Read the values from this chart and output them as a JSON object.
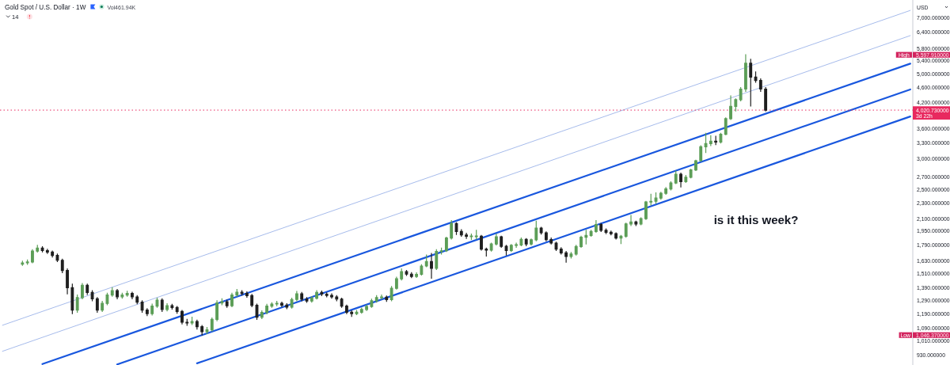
{
  "chart_data": {
    "type": "candlestick",
    "title": "Gold Spot / U.S. Dollar · 1W",
    "subtitle": "Vol461.94K",
    "ylabel": "USD",
    "log": true,
    "tick_labels": "y",
    "ylim": [
      875,
      7770
    ],
    "yticks": [
      {
        "value": 930,
        "label": "930.000000"
      },
      {
        "value": 1010,
        "label": "1,010.000000"
      },
      {
        "value": 1090,
        "label": "1,090.000000"
      },
      {
        "value": 1190,
        "label": "1,190.000000"
      },
      {
        "value": 1290,
        "label": "1,290.000000"
      },
      {
        "value": 1390,
        "label": "1,390.000000"
      },
      {
        "value": 1510,
        "label": "1,510.000000"
      },
      {
        "value": 1630,
        "label": "1,630.000000"
      },
      {
        "value": 1790,
        "label": "1,790.000000"
      },
      {
        "value": 1950,
        "label": "1,950.000000"
      },
      {
        "value": 2100,
        "label": "2,100.000000"
      },
      {
        "value": 2300,
        "label": "2,300.000000"
      },
      {
        "value": 2500,
        "label": "2,500.000000"
      },
      {
        "value": 2700,
        "label": "2,700.000000"
      },
      {
        "value": 3000,
        "label": "3,000.000000"
      },
      {
        "value": 3300,
        "label": "3,300.000000"
      },
      {
        "value": 3600,
        "label": "3,600.000000"
      },
      {
        "value": 4200,
        "label": "4,200.000000"
      },
      {
        "value": 4600,
        "label": "4,600.000000"
      },
      {
        "value": 5000,
        "label": "5,000.000000"
      },
      {
        "value": 5400,
        "label": "5,400.000000"
      },
      {
        "value": 5800,
        "label": "5,800.000000"
      },
      {
        "value": 6400,
        "label": "6,400.000000"
      },
      {
        "value": 7000,
        "label": "7,000.000000"
      }
    ],
    "categories": [
      null,
      null,
      null,
      null,
      null,
      null,
      null,
      null,
      null,
      null,
      null,
      null,
      null,
      null,
      null,
      null,
      null,
      null,
      null,
      null,
      null,
      null,
      null,
      null,
      null,
      null,
      null,
      null,
      null,
      null,
      null,
      null,
      null,
      null,
      null,
      null,
      null,
      null,
      null,
      null,
      null,
      null,
      null,
      null,
      null,
      null,
      null,
      null,
      null,
      null,
      null,
      null,
      null,
      null,
      null,
      null,
      null,
      null,
      null,
      null,
      null,
      null,
      null,
      null,
      null,
      null,
      null,
      null,
      null,
      null,
      null,
      null,
      null,
      null,
      null,
      null,
      null,
      null,
      null,
      null,
      null,
      null,
      null,
      null,
      null,
      null,
      null,
      null,
      null,
      null,
      null,
      null,
      null,
      null,
      null,
      null,
      null,
      null,
      null,
      null,
      null,
      null,
      null,
      null,
      null,
      null,
      null,
      null,
      null,
      null,
      null,
      null,
      null,
      null,
      null,
      null,
      null,
      null,
      null,
      null,
      null,
      null,
      null,
      null,
      null,
      null,
      null,
      null,
      null,
      null,
      null,
      null,
      null,
      null,
      null,
      null,
      null,
      null,
      null,
      null,
      null,
      null,
      null,
      null,
      null,
      null,
      null,
      null,
      null,
      null,
      null,
      null,
      null,
      null,
      null,
      null,
      null,
      null,
      null,
      null,
      null,
      null,
      null,
      null,
      null,
      null,
      null,
      null,
      null,
      null,
      null,
      null,
      null,
      null,
      null,
      null,
      null,
      null,
      null,
      null,
      null,
      null,
      null
    ],
    "ohlc": [
      null,
      null,
      null,
      null,
      [
        1600,
        1628,
        1588,
        1612
      ],
      [
        1612,
        1640,
        1598,
        1620
      ],
      [
        1620,
        1745,
        1612,
        1730
      ],
      [
        1730,
        1790,
        1720,
        1760
      ],
      [
        1760,
        1775,
        1722,
        1735
      ],
      [
        1735,
        1748,
        1705,
        1720
      ],
      [
        1720,
        1730,
        1670,
        1685
      ],
      [
        1685,
        1700,
        1625,
        1637
      ],
      [
        1637,
        1648,
        1520,
        1540
      ],
      [
        1540,
        1555,
        1340,
        1390
      ],
      [
        1390,
        1420,
        1190,
        1215
      ],
      [
        1215,
        1330,
        1200,
        1310
      ],
      [
        1310,
        1425,
        1300,
        1410
      ],
      [
        1410,
        1420,
        1335,
        1350
      ],
      [
        1350,
        1365,
        1285,
        1300
      ],
      [
        1300,
        1310,
        1200,
        1215
      ],
      [
        1215,
        1280,
        1205,
        1265
      ],
      [
        1265,
        1345,
        1255,
        1330
      ],
      [
        1330,
        1390,
        1320,
        1365
      ],
      [
        1365,
        1375,
        1300,
        1316
      ],
      [
        1316,
        1345,
        1305,
        1330
      ],
      [
        1330,
        1360,
        1320,
        1342
      ],
      [
        1342,
        1352,
        1300,
        1315
      ],
      [
        1315,
        1325,
        1262,
        1275
      ],
      [
        1275,
        1285,
        1200,
        1215
      ],
      [
        1215,
        1225,
        1175,
        1190
      ],
      [
        1190,
        1260,
        1180,
        1245
      ],
      [
        1245,
        1305,
        1235,
        1290
      ],
      [
        1290,
        1300,
        1205,
        1220
      ],
      [
        1220,
        1262,
        1210,
        1248
      ],
      [
        1248,
        1258,
        1222,
        1234
      ],
      [
        1234,
        1242,
        1192,
        1205
      ],
      [
        1205,
        1212,
        1118,
        1130
      ],
      [
        1130,
        1150,
        1110,
        1125
      ],
      [
        1125,
        1165,
        1115,
        1135
      ],
      [
        1135,
        1145,
        1085,
        1100
      ],
      [
        1100,
        1108,
        1046.37,
        1068
      ],
      [
        1068,
        1095,
        1055,
        1080
      ],
      [
        1080,
        1160,
        1072,
        1150
      ],
      [
        1150,
        1285,
        1140,
        1268
      ],
      [
        1268,
        1300,
        1255,
        1278
      ],
      [
        1278,
        1290,
        1235,
        1248
      ],
      [
        1248,
        1345,
        1240,
        1330
      ],
      [
        1330,
        1375,
        1320,
        1352
      ],
      [
        1352,
        1365,
        1330,
        1342
      ],
      [
        1342,
        1355,
        1312,
        1325
      ],
      [
        1325,
        1335,
        1240,
        1250
      ],
      [
        1250,
        1260,
        1150,
        1165
      ],
      [
        1165,
        1210,
        1155,
        1198
      ],
      [
        1198,
        1258,
        1188,
        1245
      ],
      [
        1245,
        1270,
        1235,
        1260
      ],
      [
        1260,
        1280,
        1248,
        1265
      ],
      [
        1265,
        1275,
        1240,
        1252
      ],
      [
        1252,
        1262,
        1225,
        1237
      ],
      [
        1237,
        1305,
        1230,
        1295
      ],
      [
        1295,
        1358,
        1285,
        1340
      ],
      [
        1340,
        1350,
        1285,
        1297
      ],
      [
        1297,
        1310,
        1272,
        1284
      ],
      [
        1284,
        1318,
        1275,
        1305
      ],
      [
        1305,
        1365,
        1298,
        1350
      ],
      [
        1350,
        1362,
        1325,
        1337
      ],
      [
        1337,
        1348,
        1315,
        1327
      ],
      [
        1327,
        1340,
        1305,
        1315
      ],
      [
        1315,
        1325,
        1285,
        1298
      ],
      [
        1298,
        1305,
        1235,
        1245
      ],
      [
        1245,
        1252,
        1190,
        1200
      ],
      [
        1200,
        1210,
        1170,
        1190
      ],
      [
        1190,
        1212,
        1182,
        1200
      ],
      [
        1200,
        1230,
        1192,
        1220
      ],
      [
        1220,
        1252,
        1212,
        1242
      ],
      [
        1242,
        1298,
        1235,
        1285
      ],
      [
        1285,
        1325,
        1275,
        1310
      ],
      [
        1310,
        1330,
        1298,
        1313
      ],
      [
        1313,
        1322,
        1280,
        1294
      ],
      [
        1294,
        1400,
        1285,
        1385
      ],
      [
        1385,
        1480,
        1378,
        1465
      ],
      [
        1465,
        1555,
        1455,
        1530
      ],
      [
        1530,
        1540,
        1495,
        1507
      ],
      [
        1507,
        1520,
        1475,
        1487
      ],
      [
        1487,
        1518,
        1478,
        1505
      ],
      [
        1505,
        1595,
        1498,
        1582
      ],
      [
        1582,
        1690,
        1575,
        1625
      ],
      [
        1625,
        1705,
        1470,
        1560
      ],
      [
        1560,
        1745,
        1550,
        1725
      ],
      [
        1725,
        1760,
        1700,
        1733
      ],
      [
        1733,
        1880,
        1725,
        1870
      ],
      [
        1870,
        2075,
        1860,
        2040
      ],
      [
        2040,
        2050,
        1910,
        1945
      ],
      [
        1945,
        1965,
        1890,
        1905
      ],
      [
        1905,
        1925,
        1865,
        1890
      ],
      [
        1890,
        1915,
        1855,
        1890
      ],
      [
        1890,
        1960,
        1860,
        1890
      ],
      [
        1890,
        1900,
        1740,
        1750
      ],
      [
        1750,
        1760,
        1680,
        1740
      ],
      [
        1740,
        1815,
        1730,
        1805
      ],
      [
        1805,
        1915,
        1795,
        1885
      ],
      [
        1885,
        1890,
        1770,
        1780
      ],
      [
        1780,
        1790,
        1690,
        1735
      ],
      [
        1735,
        1800,
        1725,
        1790
      ],
      [
        1790,
        1815,
        1770,
        1795
      ],
      [
        1795,
        1870,
        1785,
        1855
      ],
      [
        1855,
        1865,
        1785,
        1805
      ],
      [
        1805,
        1860,
        1795,
        1850
      ],
      [
        1850,
        2070,
        1840,
        1985
      ],
      [
        1985,
        1995,
        1915,
        1930
      ],
      [
        1930,
        1940,
        1840,
        1852
      ],
      [
        1852,
        1870,
        1805,
        1815
      ],
      [
        1815,
        1825,
        1735,
        1750
      ],
      [
        1750,
        1765,
        1700,
        1712
      ],
      [
        1712,
        1725,
        1618,
        1675
      ],
      [
        1675,
        1715,
        1660,
        1700
      ],
      [
        1700,
        1790,
        1690,
        1777
      ],
      [
        1777,
        1890,
        1770,
        1880
      ],
      [
        1880,
        1960,
        1805,
        1900
      ],
      [
        1900,
        1960,
        1890,
        1945
      ],
      [
        1945,
        2075,
        1935,
        2028
      ],
      [
        2028,
        2040,
        1945,
        1958
      ],
      [
        1958,
        1975,
        1920,
        1935
      ],
      [
        1935,
        1950,
        1905,
        1920
      ],
      [
        1920,
        1930,
        1860,
        1870
      ],
      [
        1870,
        1900,
        1810,
        1890
      ],
      [
        1890,
        2045,
        1880,
        2035
      ],
      [
        2035,
        2140,
        2015,
        2060
      ],
      [
        2060,
        2070,
        2015,
        2035
      ],
      [
        2035,
        2110,
        2025,
        2100
      ],
      [
        2100,
        2330,
        2090,
        2320
      ],
      [
        2320,
        2430,
        2280,
        2330
      ],
      [
        2330,
        2450,
        2300,
        2375
      ],
      [
        2375,
        2460,
        2360,
        2445
      ],
      [
        2445,
        2530,
        2430,
        2510
      ],
      [
        2510,
        2620,
        2495,
        2600
      ],
      [
        2600,
        2790,
        2590,
        2740
      ],
      [
        2740,
        2760,
        2540,
        2622
      ],
      [
        2622,
        2720,
        2610,
        2690
      ],
      [
        2690,
        2820,
        2680,
        2810
      ],
      [
        2810,
        2980,
        2800,
        2970
      ],
      [
        2970,
        3250,
        2960,
        3230
      ],
      [
        3230,
        3500,
        3120,
        3290
      ],
      [
        3290,
        3450,
        3250,
        3340
      ],
      [
        3340,
        3440,
        3270,
        3320
      ],
      [
        3320,
        3500,
        3300,
        3480
      ],
      [
        3480,
        3840,
        3470,
        3820
      ],
      [
        3820,
        4380,
        3800,
        4110
      ],
      [
        4110,
        4300,
        4000,
        4280
      ],
      [
        4280,
        4600,
        4250,
        4560
      ],
      [
        4560,
        5597.91,
        4500,
        5320
      ],
      [
        5320,
        5450,
        4120,
        4900
      ],
      [
        4900,
        5050,
        4750,
        4800
      ],
      [
        4800,
        4850,
        4500,
        4560
      ],
      [
        4560,
        4600,
        4000,
        4020.73
      ],
      null,
      null,
      null,
      null,
      null,
      null,
      null,
      null,
      null,
      null,
      null,
      null,
      null,
      null,
      null,
      null,
      null,
      null,
      null,
      null,
      null,
      null,
      null,
      null,
      null,
      null,
      null,
      null,
      null
    ],
    "colors": [
      null,
      null,
      null,
      null,
      "#5c9e57",
      "#5c9e57",
      "#5c9e57",
      "#5c9e57",
      "#1f1f1f",
      "#1f1f1f",
      "#1f1f1f",
      "#1f1f1f",
      "#1f1f1f",
      "#1f1f1f",
      "#1f1f1f",
      "#5c9e57",
      "#5c9e57",
      "#1f1f1f",
      "#1f1f1f",
      "#1f1f1f",
      "#5c9e57",
      "#5c9e57",
      "#5c9e57",
      "#1f1f1f",
      "#5c9e57",
      "#5c9e57",
      "#1f1f1f",
      "#1f1f1f",
      "#1f1f1f",
      "#1f1f1f",
      "#5c9e57",
      "#5c9e57",
      "#1f1f1f",
      "#5c9e57",
      "#1f1f1f",
      "#1f1f1f",
      "#1f1f1f",
      "#1f1f1f",
      "#5c9e57",
      "#1f1f1f",
      "#1f1f1f",
      "#5c9e57",
      "#5c9e57",
      "#5c9e57",
      "#5c9e57",
      "#1f1f1f",
      "#5c9e57",
      "#5c9e57",
      "#1f1f1f",
      "#1f1f1f",
      "#1f1f1f",
      "#1f1f1f",
      "#5c9e57",
      "#5c9e57",
      "#5c9e57",
      "#5c9e57",
      "#1f1f1f",
      "#1f1f1f",
      "#5c9e57",
      "#5c9e57",
      "#1f1f1f",
      "#1f1f1f",
      "#5c9e57",
      "#5c9e57",
      "#1f1f1f",
      "#1f1f1f",
      "#1f1f1f",
      "#1f1f1f",
      "#1f1f1f",
      "#1f1f1f",
      "#1f1f1f",
      "#5c9e57",
      "#5c9e57",
      "#5c9e57",
      "#5c9e57",
      "#5c9e57",
      "#5c9e57",
      "#1f1f1f",
      "#5c9e57",
      "#5c9e57",
      "#5c9e57",
      "#1f1f1f",
      "#1f1f1f",
      "#5c9e57",
      "#5c9e57",
      "#5c9e57",
      "#1f1f1f",
      "#5c9e57",
      "#5c9e57",
      "#5c9e57",
      "#5c9e57",
      "#1f1f1f",
      "#1f1f1f",
      "#1f1f1f",
      "#5c9e57",
      "#5c9e57",
      "#1f1f1f",
      "#1f1f1f",
      "#5c9e57",
      "#5c9e57",
      "#1f1f1f",
      "#1f1f1f",
      "#5c9e57",
      "#5c9e57",
      "#5c9e57",
      "#1f1f1f",
      "#5c9e57",
      "#5c9e57",
      "#1f1f1f",
      "#1f1f1f",
      "#1f1f1f",
      "#1f1f1f",
      "#1f1f1f",
      "#1f1f1f",
      "#5c9e57",
      "#5c9e57",
      "#5c9e57",
      "#5c9e57",
      "#5c9e57",
      "#5c9e57",
      "#1f1f1f",
      "#1f1f1f",
      "#1f1f1f",
      "#1f1f1f",
      "#5c9e57",
      "#5c9e57",
      "#5c9e57",
      "#1f1f1f",
      "#5c9e57",
      "#5c9e57",
      "#5c9e57",
      "#5c9e57",
      "#5c9e57",
      "#5c9e57",
      "#5c9e57",
      "#5c9e57",
      "#1f1f1f",
      "#5c9e57",
      "#5c9e57",
      "#5c9e57",
      "#5c9e57",
      "#5c9e57",
      "#5c9e57",
      "#1f1f1f",
      "#5c9e57",
      "#5c9e57",
      "#5c9e57",
      "#5c9e57",
      "#5c9e57",
      "#5c9e57",
      "#1f1f1f",
      "#1f1f1f",
      "#1f1f1f",
      "#1f1f1f",
      null,
      null,
      null,
      null,
      null,
      null,
      null,
      null,
      null,
      null,
      null,
      null,
      null,
      null,
      null,
      null,
      null,
      null,
      null,
      null,
      null,
      null,
      null,
      null,
      null,
      null,
      null,
      null,
      null
    ],
    "series": [
      {
        "type": "line",
        "color": "#8fa9e6",
        "values": [
          1110,
          null,
          null,
          null,
          null,
          null,
          null,
          null,
          null,
          null,
          null,
          null,
          null,
          null,
          null,
          null,
          null,
          null,
          null,
          null,
          null,
          null,
          null,
          null,
          null,
          null,
          null,
          null,
          null,
          null,
          null,
          null,
          null,
          null,
          null,
          null,
          null,
          null,
          null,
          null,
          null,
          null,
          null,
          null,
          null,
          null,
          null,
          null,
          null,
          null,
          null,
          null,
          null,
          null,
          null,
          null,
          null,
          null,
          null,
          null,
          null,
          null,
          null,
          null,
          null,
          null,
          null,
          null,
          null,
          null,
          null,
          null,
          null,
          null,
          null,
          null,
          null,
          null,
          null,
          null,
          null,
          null,
          null,
          null,
          null,
          null,
          null,
          null,
          null,
          null,
          null,
          null,
          null,
          null,
          null,
          null,
          null,
          null,
          null,
          null,
          null,
          null,
          null,
          null,
          null,
          null,
          null,
          null,
          null,
          null,
          null,
          null,
          null,
          null,
          null,
          null,
          null,
          null,
          null,
          null,
          null,
          null,
          null,
          null,
          null,
          null,
          null,
          null,
          null,
          null,
          null,
          null,
          null,
          null,
          null,
          null,
          null,
          null,
          null,
          null,
          null,
          null,
          null,
          null,
          null,
          null,
          null,
          null,
          null,
          null,
          null,
          null,
          null,
          null,
          null,
          null,
          null,
          null,
          null,
          null,
          null,
          null,
          null,
          null,
          null,
          null,
          null,
          null,
          null,
          null,
          null,
          null,
          null,
          null,
          null,
          null,
          null,
          null,
          null,
          null,
          null,
          null,
          7300
        ]
      },
      {
        "type": "line",
        "color": "#8fa9e6",
        "values": [
          950,
          null,
          null,
          null,
          null,
          null,
          null,
          null,
          null,
          null,
          null,
          null,
          null,
          null,
          null,
          null,
          null,
          null,
          null,
          null,
          null,
          null,
          null,
          null,
          null,
          null,
          null,
          null,
          null,
          null,
          null,
          null,
          null,
          null,
          null,
          null,
          null,
          null,
          null,
          null,
          null,
          null,
          null,
          null,
          null,
          null,
          null,
          null,
          null,
          null,
          null,
          null,
          null,
          null,
          null,
          null,
          null,
          null,
          null,
          null,
          null,
          null,
          null,
          null,
          null,
          null,
          null,
          null,
          null,
          null,
          null,
          null,
          null,
          null,
          null,
          null,
          null,
          null,
          null,
          null,
          null,
          null,
          null,
          null,
          null,
          null,
          null,
          null,
          null,
          null,
          null,
          null,
          null,
          null,
          null,
          null,
          null,
          null,
          null,
          null,
          null,
          null,
          null,
          null,
          null,
          null,
          null,
          null,
          null,
          null,
          null,
          null,
          null,
          null,
          null,
          null,
          null,
          null,
          null,
          null,
          null,
          null,
          null,
          null,
          null,
          null,
          null,
          null,
          null,
          null,
          null,
          null,
          null,
          null,
          null,
          null,
          null,
          null,
          null,
          null,
          null,
          null,
          null,
          null,
          null,
          null,
          null,
          null,
          null,
          null,
          null,
          null,
          null,
          null,
          null,
          null,
          null,
          null,
          null,
          null,
          null,
          null,
          null,
          null,
          null,
          null,
          null,
          null,
          null,
          null,
          null,
          null,
          null,
          null,
          null,
          null,
          null,
          null,
          null,
          null,
          null,
          null,
          6280
        ]
      },
      {
        "type": "line",
        "color": "#1957de",
        "values": [
          null,
          null,
          null,
          null,
          null,
          null,
          null,
          null,
          880,
          null,
          null,
          null,
          null,
          null,
          null,
          null,
          null,
          null,
          null,
          null,
          null,
          null,
          null,
          null,
          null,
          null,
          null,
          null,
          null,
          null,
          null,
          null,
          null,
          null,
          null,
          null,
          null,
          null,
          null,
          null,
          null,
          null,
          null,
          null,
          null,
          null,
          null,
          null,
          null,
          null,
          null,
          null,
          null,
          null,
          null,
          null,
          null,
          null,
          null,
          null,
          null,
          null,
          null,
          null,
          null,
          null,
          null,
          null,
          null,
          null,
          null,
          null,
          null,
          null,
          null,
          null,
          null,
          null,
          null,
          null,
          null,
          null,
          null,
          null,
          null,
          null,
          null,
          null,
          null,
          null,
          null,
          null,
          null,
          null,
          null,
          null,
          null,
          null,
          null,
          null,
          null,
          null,
          null,
          null,
          null,
          null,
          null,
          null,
          null,
          null,
          null,
          null,
          null,
          null,
          null,
          null,
          null,
          null,
          null,
          null,
          null,
          null,
          null,
          null,
          null,
          null,
          null,
          null,
          null,
          null,
          null,
          null,
          null,
          null,
          null,
          null,
          null,
          null,
          null,
          null,
          null,
          null,
          null,
          null,
          null,
          null,
          null,
          null,
          null,
          null,
          null,
          null,
          null,
          null,
          null,
          null,
          null,
          null,
          null,
          null,
          null,
          null,
          null,
          null,
          null,
          null,
          null,
          null,
          null,
          null,
          null,
          null,
          null,
          null,
          null,
          null,
          null,
          null,
          null,
          null,
          null,
          null,
          5310
        ]
      },
      {
        "type": "line",
        "color": "#1957de",
        "values": [
          null,
          null,
          null,
          null,
          null,
          null,
          null,
          null,
          null,
          null,
          null,
          null,
          null,
          null,
          null,
          null,
          null,
          null,
          null,
          null,
          null,
          null,
          null,
          878,
          null,
          null,
          null,
          null,
          null,
          null,
          null,
          null,
          null,
          null,
          null,
          null,
          null,
          null,
          null,
          null,
          null,
          null,
          null,
          null,
          null,
          null,
          null,
          null,
          null,
          null,
          null,
          null,
          null,
          null,
          null,
          null,
          null,
          null,
          null,
          null,
          null,
          null,
          null,
          null,
          null,
          null,
          null,
          null,
          null,
          null,
          null,
          null,
          null,
          null,
          null,
          null,
          null,
          null,
          null,
          null,
          null,
          null,
          null,
          null,
          null,
          null,
          null,
          null,
          null,
          null,
          null,
          null,
          null,
          null,
          null,
          null,
          null,
          null,
          null,
          null,
          null,
          null,
          null,
          null,
          null,
          null,
          null,
          null,
          null,
          null,
          null,
          null,
          null,
          null,
          null,
          null,
          null,
          null,
          null,
          null,
          null,
          null,
          null,
          null,
          null,
          null,
          null,
          null,
          null,
          null,
          null,
          null,
          null,
          null,
          null,
          null,
          null,
          null,
          null,
          null,
          null,
          null,
          null,
          null,
          null,
          null,
          null,
          null,
          null,
          null,
          null,
          null,
          null,
          null,
          null,
          null,
          null,
          null,
          null,
          null,
          null,
          null,
          null,
          null,
          null,
          null,
          null,
          null,
          null,
          null,
          null,
          null,
          null,
          null,
          null,
          null,
          null,
          null,
          null,
          null,
          null,
          null,
          4550
        ]
      },
      {
        "type": "line",
        "color": "#1957de",
        "values": [
          null,
          null,
          null,
          null,
          null,
          null,
          null,
          null,
          null,
          null,
          null,
          null,
          null,
          null,
          null,
          null,
          null,
          null,
          null,
          null,
          null,
          null,
          null,
          null,
          null,
          null,
          null,
          null,
          null,
          null,
          null,
          null,
          null,
          null,
          null,
          null,
          null,
          null,
          null,
          884,
          null,
          null,
          null,
          null,
          null,
          null,
          null,
          null,
          null,
          null,
          null,
          null,
          null,
          null,
          null,
          null,
          null,
          null,
          null,
          null,
          null,
          null,
          null,
          null,
          null,
          null,
          null,
          null,
          null,
          null,
          null,
          null,
          null,
          null,
          null,
          null,
          null,
          null,
          null,
          null,
          null,
          null,
          null,
          null,
          null,
          null,
          null,
          null,
          null,
          null,
          null,
          null,
          null,
          null,
          null,
          null,
          null,
          null,
          null,
          null,
          null,
          null,
          null,
          null,
          null,
          null,
          null,
          null,
          null,
          null,
          null,
          null,
          null,
          null,
          null,
          null,
          null,
          null,
          null,
          null,
          null,
          null,
          null,
          null,
          null,
          null,
          null,
          null,
          null,
          null,
          null,
          null,
          null,
          null,
          null,
          null,
          null,
          null,
          null,
          null,
          null,
          null,
          null,
          null,
          null,
          null,
          null,
          null,
          null,
          null,
          null,
          null,
          null,
          null,
          null,
          null,
          null,
          null,
          null,
          null,
          null,
          null,
          null,
          null,
          null,
          null,
          null,
          null,
          null,
          null,
          null,
          null,
          null,
          null,
          null,
          null,
          null,
          null,
          null,
          null,
          null,
          null,
          3870
        ]
      }
    ],
    "ref_lines": [
      {
        "axis": "y",
        "value": 4020.73,
        "label": "4,020.730000\n3d 22h",
        "color": "#e8295f",
        "line_style": "dotted"
      }
    ],
    "annotations": [
      "14",
      "High",
      "5,597.910000",
      "Low",
      "1,046.370000",
      "is it this week?"
    ]
  }
}
